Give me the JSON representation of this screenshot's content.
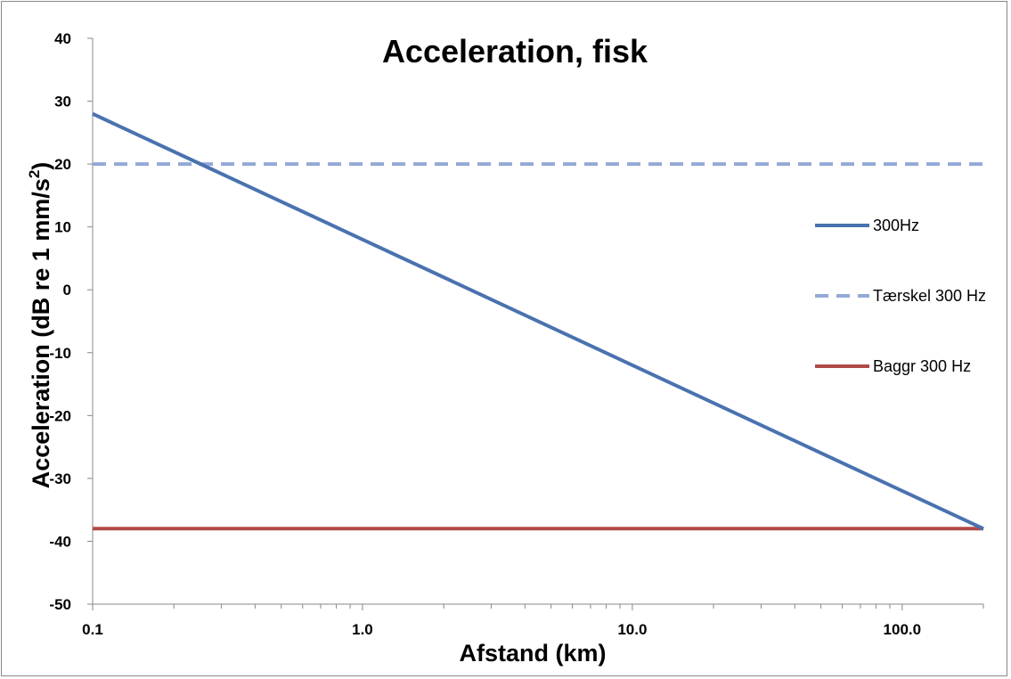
{
  "chart_data": {
    "type": "line",
    "title": "Acceleration, fisk",
    "xlabel": "Afstand (km)",
    "ylabel": "Acceleration (dB re 1 mm/s",
    "ylabel_superscript": "2",
    "ylabel_suffix": ")",
    "x_scale": "log",
    "xlim": [
      0.1,
      200
    ],
    "ylim": [
      -50,
      40
    ],
    "x_ticks": [
      0.1,
      1,
      10,
      100
    ],
    "x_tick_labels": [
      "0.1",
      "1.0",
      "10.0",
      "100.0"
    ],
    "y_ticks": [
      -50,
      -40,
      -30,
      -20,
      -10,
      0,
      10,
      20,
      30,
      40
    ],
    "y_tick_labels": [
      "-50",
      "-40",
      "-30",
      "-20",
      "-10",
      "0",
      "10",
      "20",
      "30",
      "40"
    ],
    "grid": false,
    "legend_position": "right",
    "series": [
      {
        "name": "300Hz",
        "color": "#4a72b0",
        "dash": "solid",
        "x": [
          0.1,
          200
        ],
        "y": [
          28,
          -38
        ]
      },
      {
        "name": "Tærskel 300 Hz",
        "color": "#93a9d7",
        "dash": "dashed",
        "x": [
          0.1,
          200
        ],
        "y": [
          20,
          20
        ]
      },
      {
        "name": "Baggr 300 Hz",
        "color": "#b04a48",
        "dash": "solid",
        "x": [
          0.1,
          200
        ],
        "y": [
          -38,
          -38
        ]
      }
    ]
  }
}
